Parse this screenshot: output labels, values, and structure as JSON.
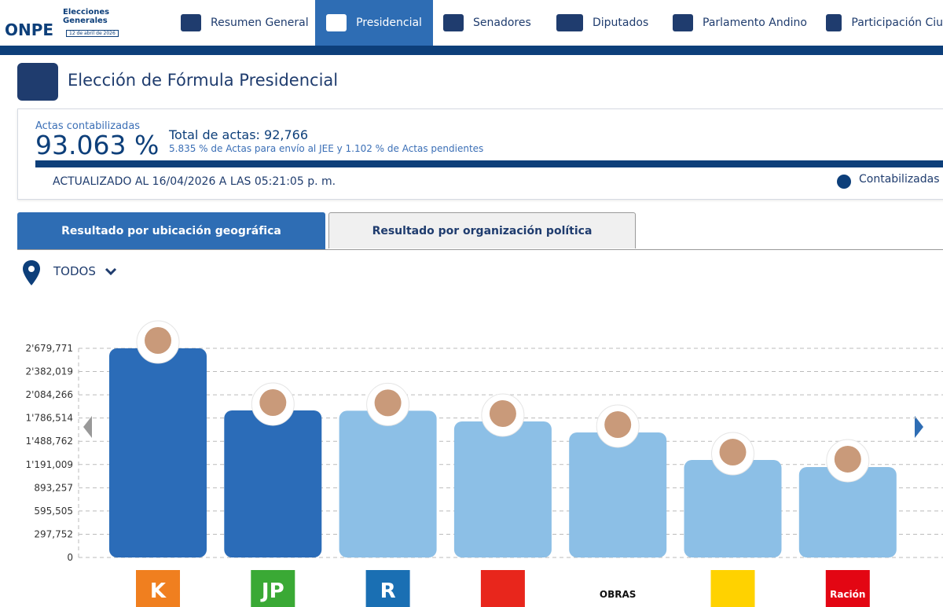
{
  "logo": {
    "brand": "ONPE",
    "title": "Elecciones Generales",
    "date": "12 de abril de 2026"
  },
  "nav": [
    "Resumen General",
    "Presidencial",
    "Senadores",
    "Diputados",
    "Parlamento Andino",
    "Participación Ciu"
  ],
  "header": {
    "title": "Elección de Fórmula Presidencial"
  },
  "summary": {
    "label": "Actas contabilizadas",
    "percent": "93.063 %",
    "total": "Total de actas: 92,766",
    "detail": "5.835 % de Actas para envío al JEE y 1.102 % de Actas pendientes",
    "updated": "ACTUALIZADO AL 16/04/2026 A LAS 05:21:05 p. m.",
    "legend": "Contabilizadas"
  },
  "tabs": [
    "Resultado por ubicación geográfica",
    "Resultado por organización política"
  ],
  "filter": "TODOS",
  "party_logos": [
    {
      "text": "K",
      "color": "#f07f1f"
    },
    {
      "text": "JP",
      "color": "#3aa935"
    },
    {
      "text": "R",
      "color": "#1a6fb3"
    },
    {
      "color": "#e8261c"
    },
    {
      "text": "OBRAS",
      "color": "#111111"
    },
    {
      "color": "#ffd200"
    },
    {
      "text": "Ración",
      "color": "#e30613"
    }
  ],
  "chart_data": {
    "type": "bar",
    "categories": [
      null,
      null,
      null,
      null,
      null,
      null,
      null
    ],
    "values": [
      2679771,
      1884000,
      1880000,
      1743000,
      1602000,
      1249000,
      1159000
    ],
    "colors": [
      "#2b6cb8",
      "#2b6cb8",
      "#8cbfe6",
      "#8cbfe6",
      "#8cbfe6",
      "#8cbfe6",
      "#8cbfe6"
    ],
    "ylim": [
      0,
      2679771
    ],
    "yticks": [
      0,
      {
        "value": 297752,
        "label": "297,752"
      },
      {
        "value": 595505,
        "label": "595,505"
      },
      {
        "value": 893257,
        "label": "893,257"
      },
      {
        "value": 1191009,
        "label": "1'191,009"
      },
      {
        "value": 1488762,
        "label": "1'488,762"
      },
      {
        "value": 1786514,
        "label": "1'786,514"
      },
      {
        "value": 2084266,
        "label": "2'084,266"
      },
      {
        "value": 2382019,
        "label": "2'382,019"
      },
      {
        "value": 2679771,
        "label": "2'679,771"
      }
    ],
    "grid": true
  }
}
